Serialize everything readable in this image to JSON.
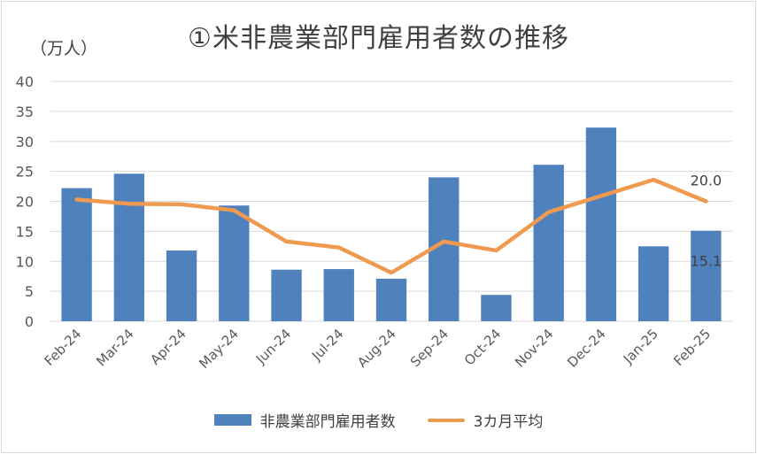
{
  "chart_data": {
    "type": "bar",
    "title": "①米非農業部門雇用者数の推移",
    "unit_label": "（万人）",
    "categories": [
      "Feb-24",
      "Mar-24",
      "Apr-24",
      "May-24",
      "Jun-24",
      "Jul-24",
      "Aug-24",
      "Sep-24",
      "Oct-24",
      "Nov-24",
      "Dec-24",
      "Jan-25",
      "Feb-25"
    ],
    "ylim": [
      0,
      40
    ],
    "yticks": [
      "0",
      "5",
      "10",
      "15",
      "20",
      "25",
      "30",
      "35",
      "40"
    ],
    "grid": true,
    "legend_position": "bottom",
    "series": [
      {
        "name": "非農業部門雇用者数",
        "type": "bar",
        "color": "#4f81bd",
        "values": [
          22.2,
          24.6,
          11.8,
          19.3,
          8.6,
          8.7,
          7.1,
          24.0,
          4.4,
          26.1,
          32.3,
          12.5,
          15.1
        ]
      },
      {
        "name": "3カ月平均",
        "type": "line",
        "color": "#f09a50",
        "values": [
          20.3,
          19.6,
          19.5,
          18.5,
          13.3,
          12.3,
          8.1,
          13.3,
          11.8,
          18.2,
          20.9,
          23.6,
          20.0
        ]
      }
    ],
    "data_labels": [
      {
        "series": 1,
        "index": 12,
        "text": "20.0"
      },
      {
        "series": 0,
        "index": 12,
        "text": "15.1"
      }
    ]
  }
}
